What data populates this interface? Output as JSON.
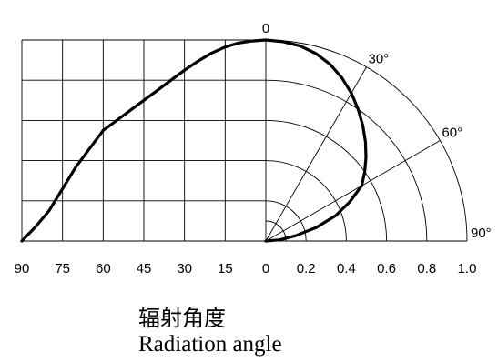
{
  "chart_data": {
    "type": "line",
    "left_panel": {
      "x_ticks": [
        "90",
        "75",
        "60",
        "45",
        "30",
        "15",
        "0"
      ],
      "x_values": [
        90,
        75,
        60,
        45,
        30,
        15,
        0
      ],
      "y_range": [
        0,
        1.0
      ],
      "grid": true
    },
    "right_panel": {
      "type": "polar",
      "r_ticks": [
        "0.2",
        "0.4",
        "0.6",
        "0.8",
        "1.0"
      ],
      "r_values": [
        0.2,
        0.4,
        0.6,
        0.8,
        1.0
      ],
      "angle_labels": [
        "0",
        "30°",
        "60°",
        "90°"
      ],
      "angle_values": [
        0,
        30,
        60,
        90
      ]
    },
    "series": [
      {
        "x": [
          0,
          5,
          10,
          15,
          20,
          25,
          30,
          35,
          40,
          45,
          50,
          55,
          60,
          65,
          70,
          75,
          80,
          85,
          90
        ],
        "y": [
          1.0,
          0.995,
          0.985,
          0.965,
          0.935,
          0.895,
          0.85,
          0.8,
          0.75,
          0.7,
          0.65,
          0.6,
          0.55,
          0.46,
          0.37,
          0.26,
          0.15,
          0.07,
          0.0
        ]
      }
    ]
  },
  "caption": {
    "line1": "辐射角度",
    "line2": "Radiation angle"
  }
}
